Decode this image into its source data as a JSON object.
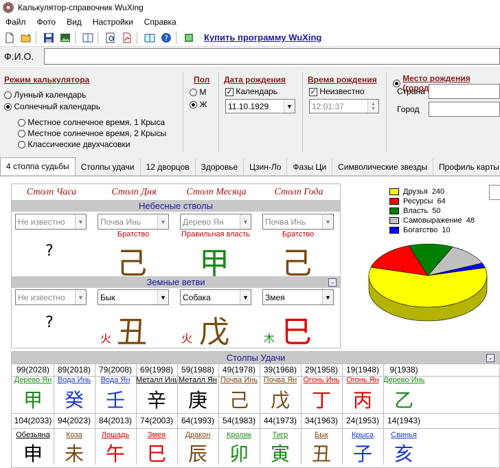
{
  "window": {
    "title": "Калькулятор-справочник WuXing"
  },
  "menu": [
    "Файл",
    "Фото",
    "Вид",
    "Настройки",
    "Справка"
  ],
  "toolbar": {
    "icons": [
      "new-icon",
      "open-icon",
      "save-icon",
      "image-icon",
      "book-icon",
      "preview-icon",
      "pdf-icon",
      "help-book-icon",
      "help-icon",
      "notes-icon"
    ],
    "buy_label": "Купить программу WuXing"
  },
  "fio": {
    "label": "Ф.И.О.",
    "value": ""
  },
  "mode": {
    "title": "Режим калькулятора",
    "lunar": "Лунный календарь",
    "solar": "Солнечный календарь",
    "opt1": "Местное солнечное время, 1 Крыса",
    "opt2": "Местное солнечное время, 2 Крысы",
    "opt3": "Классические двухчасовки"
  },
  "sex": {
    "title": "Пол",
    "m": "М",
    "f": "Ж"
  },
  "birthdate": {
    "title": "Дата рождения",
    "calendar_label": "Календарь",
    "value": "11.10.1929"
  },
  "birthtime": {
    "title": "Время рождения",
    "unknown_label": "Неизвестно",
    "value": "12:01:37"
  },
  "birthplace": {
    "title": "Место рождения (город)",
    "country_label": "Страна",
    "city_label": "Город",
    "country": "",
    "city": ""
  },
  "tabs": [
    "4 столпа судьбы",
    "Столпы удачи",
    "12 дворцов",
    "Здоровье",
    "Цзин-Ло",
    "Фазы Ци",
    "Символические звезды",
    "Профиль карты"
  ],
  "pillars": {
    "headers": [
      "Столп Часа",
      "Столп Дня",
      "Столп Месяца",
      "Столп Года"
    ],
    "stems_title": "Небесные стволы",
    "branches_title": "Земные ветви",
    "stems": [
      {
        "select": "Не известно",
        "relation": "",
        "char": "?",
        "color": "#000000"
      },
      {
        "select": "Почва Инь",
        "relation": "Братство",
        "char": "己",
        "color": "#7a4a10"
      },
      {
        "select": "Дерево Ян",
        "relation": "Правильная власть",
        "char": "甲",
        "color": "#1a8a1a"
      },
      {
        "select": "Почва Инь",
        "relation": "Братство",
        "char": "己",
        "color": "#7a4a10"
      }
    ],
    "branches": [
      {
        "select": "Не известно",
        "char": "?",
        "color": "#000000",
        "elem": "",
        "elem_color": "#000000"
      },
      {
        "select": "Бык",
        "char": "丑",
        "color": "#7a4a10",
        "elem": "火",
        "elem_color": "#c00000"
      },
      {
        "select": "Собака",
        "char": "戊",
        "color": "#7a4a10",
        "elem": "火",
        "elem_color": "#c00000"
      },
      {
        "select": "Змея",
        "char": "巳",
        "color": "#e00000",
        "elem": "木",
        "elem_color": "#1a8a1a"
      }
    ]
  },
  "chart_data": {
    "type": "pie",
    "categories": [
      "Друзья",
      "Ресурсы",
      "Власть",
      "Самовыражение",
      "Богатство"
    ],
    "values": [
      240,
      64,
      50,
      48,
      10
    ],
    "colors": [
      "#ffff00",
      "#ff0000",
      "#008000",
      "#c0c0c0",
      "#0000ff"
    ]
  },
  "luck": {
    "title": "Столпы Удачи",
    "stems": [
      {
        "age": "99(2028)",
        "name": "Дерево Ян",
        "char": "甲",
        "color": "#1a8a1a"
      },
      {
        "age": "89(2018)",
        "name": "Вода Инь",
        "char": "癸",
        "color": "#1a3ad0"
      },
      {
        "age": "79(2008)",
        "name": "Вода Ян",
        "char": "壬",
        "color": "#1a3ad0"
      },
      {
        "age": "69(1998)",
        "name": "Металл Инь",
        "char": "辛",
        "color": "#000000"
      },
      {
        "age": "59(1988)",
        "name": "Металл Ян",
        "char": "庚",
        "color": "#000000"
      },
      {
        "age": "49(1978)",
        "name": "Почва Инь",
        "char": "己",
        "color": "#7a4a10"
      },
      {
        "age": "39(1968)",
        "name": "Почва Ян",
        "char": "戊",
        "color": "#7a4a10"
      },
      {
        "age": "29(1958)",
        "name": "Огонь Инь",
        "char": "丁",
        "color": "#e00000"
      },
      {
        "age": "19(1948)",
        "name": "Огонь Ян",
        "char": "丙",
        "color": "#e00000"
      },
      {
        "age": "9(1938)",
        "name": "Дерево Инь",
        "char": "乙",
        "color": "#1a8a1a"
      }
    ],
    "branches": [
      {
        "age": "104(2033)",
        "name": "Обезьяна",
        "char": "申",
        "color": "#000000"
      },
      {
        "age": "94(2023)",
        "name": "Коза",
        "char": "未",
        "color": "#7a4a10"
      },
      {
        "age": "84(2013)",
        "name": "Лошадь",
        "char": "午",
        "color": "#e00000"
      },
      {
        "age": "74(2003)",
        "name": "Змея",
        "char": "巳",
        "color": "#e00000"
      },
      {
        "age": "64(1993)",
        "name": "Дракон",
        "char": "辰",
        "color": "#7a4a10"
      },
      {
        "age": "54(1983)",
        "name": "Кролик",
        "char": "卯",
        "color": "#1a8a1a"
      },
      {
        "age": "44(1973)",
        "name": "Тигр",
        "char": "寅",
        "color": "#1a8a1a"
      },
      {
        "age": "34(1963)",
        "name": "Бык",
        "char": "丑",
        "color": "#7a4a10"
      },
      {
        "age": "24(1953)",
        "name": "Крыса",
        "char": "子",
        "color": "#1a3ad0"
      },
      {
        "age": "14(1943)",
        "name": "Свинья",
        "char": "亥",
        "color": "#1a3ad0"
      }
    ]
  }
}
